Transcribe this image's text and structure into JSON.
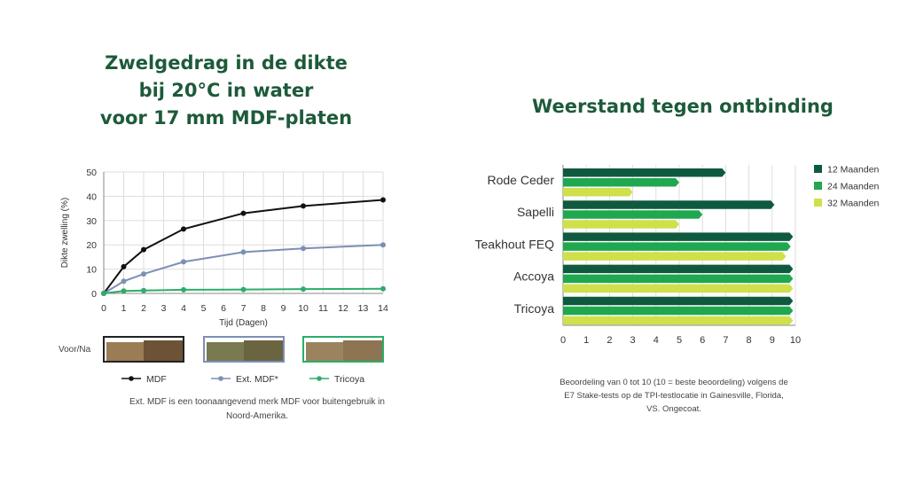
{
  "left_title": {
    "line1": "Zwelgedrag in de dikte",
    "line2": "bij 20°C in water",
    "line3": "voor 17 mm MDF-platen"
  },
  "right_title": "Weerstand tegen ontbinding",
  "colors": {
    "mdf": "#111111",
    "ext_mdf": "#7d8fb5",
    "tricoya": "#2dad6a",
    "m12": "#0f5a3f",
    "m24": "#1fa84f",
    "m32": "#cfe04a",
    "title": "#1d5a3a"
  },
  "voor_na_label": "Voor/Na",
  "left_note": "Ext. MDF is een toonaangevend merk MDF voor buitengebruik in Noord-Amerika.",
  "right_note": "Beoordeling van 0 tot 10 (10 = beste beoordeling) volgens de E7 Stake-tests op de TPI-testlocatie in Gainesville, Florida, VS. Ongecoat.",
  "chart_data": [
    {
      "type": "line",
      "xlabel": "Tijd (Dagen)",
      "ylabel": "Dikte zwelling (%)",
      "xlim": [
        0,
        14
      ],
      "ylim": [
        0,
        50
      ],
      "xticks": [
        0,
        1,
        2,
        3,
        4,
        5,
        6,
        7,
        8,
        9,
        10,
        11,
        12,
        13,
        14
      ],
      "yticks": [
        0,
        10,
        20,
        30,
        40,
        50
      ],
      "grid": true,
      "legend_position": "bottom",
      "series": [
        {
          "name": "MDF",
          "color": "#111111",
          "x": [
            0,
            1,
            2,
            4,
            7,
            10,
            14
          ],
          "y": [
            0,
            11,
            18,
            26.5,
            33,
            36,
            38.5
          ]
        },
        {
          "name": "Ext. MDF*",
          "color": "#7d8fb5",
          "x": [
            0,
            1,
            2,
            4,
            7,
            10,
            14
          ],
          "y": [
            0,
            5,
            8,
            13,
            17,
            18.5,
            20
          ]
        },
        {
          "name": "Tricoya",
          "color": "#2dad6a",
          "x": [
            0,
            1,
            2,
            4,
            7,
            10,
            14
          ],
          "y": [
            0,
            1,
            1.2,
            1.5,
            1.6,
            1.8,
            1.9
          ]
        }
      ]
    },
    {
      "type": "bar",
      "orientation": "horizontal",
      "categories": [
        "Rode Ceder",
        "Sapelli",
        "Teakhout FEQ",
        "Accoya",
        "Tricoya"
      ],
      "xlim": [
        0,
        10
      ],
      "xticks": [
        0,
        1,
        2,
        3,
        4,
        5,
        6,
        7,
        8,
        9,
        10
      ],
      "grid": true,
      "legend_position": "top-right",
      "series": [
        {
          "name": "12 Maanden",
          "color": "#0f5a3f",
          "values": [
            7,
            9.1,
            9.9,
            9.9,
            9.9
          ]
        },
        {
          "name": "24 Maanden",
          "color": "#1fa84f",
          "values": [
            5,
            6,
            9.8,
            9.9,
            9.9
          ]
        },
        {
          "name": "32 Maanden",
          "color": "#cfe04a",
          "values": [
            3,
            5,
            9.6,
            9.9,
            9.9
          ]
        }
      ]
    }
  ]
}
